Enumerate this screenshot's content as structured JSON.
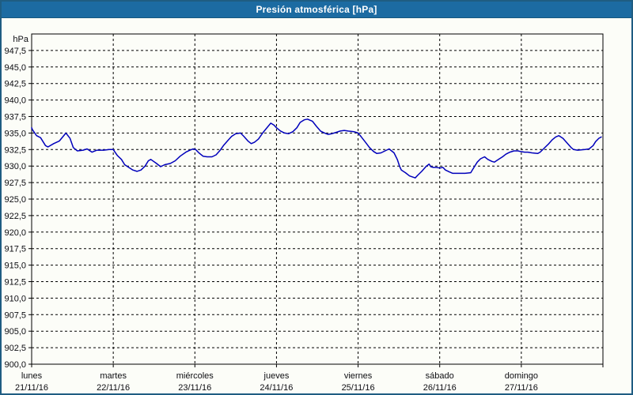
{
  "window": {
    "title": "Presión atmosférica [hPa]",
    "titlebar_bg": "#1c6ba2",
    "border_color": "#1f5d82",
    "background": "#fcfdf8"
  },
  "chart_data": {
    "type": "line",
    "title": "Presión atmosférica [hPa]",
    "unit_label": "hPa",
    "ylabel": "hPa",
    "xlabel": "",
    "ylim": [
      900,
      950
    ],
    "ytick_step": 2.5,
    "grid": "dashed",
    "legend": "none",
    "line_color": "#0000bb",
    "grid_color": "#000000",
    "ytick_labels": [
      "947,5",
      "945,0",
      "942,5",
      "940,0",
      "937,5",
      "935,0",
      "932,5",
      "930,0",
      "927,5",
      "925,0",
      "922,5",
      "920,0",
      "917,5",
      "915,0",
      "912,5",
      "910,0",
      "907,5",
      "905,0",
      "902,5",
      "900,0"
    ],
    "x_days_total": 7,
    "x_categories": [
      {
        "day": "lunes",
        "date": "21/11/16"
      },
      {
        "day": "martes",
        "date": "22/11/16"
      },
      {
        "day": "miércoles",
        "date": "23/11/16"
      },
      {
        "day": "jueves",
        "date": "24/11/16"
      },
      {
        "day": "viernes",
        "date": "25/11/16"
      },
      {
        "day": "sábado",
        "date": "26/11/16"
      },
      {
        "day": "domingo",
        "date": "27/11/16"
      }
    ],
    "series": [
      {
        "name": "Presión atmosférica",
        "points": [
          [
            0.0,
            935.8
          ],
          [
            0.01,
            935.5
          ],
          [
            0.06,
            934.6
          ],
          [
            0.11,
            934.3
          ],
          [
            0.17,
            933.1
          ],
          [
            0.2,
            932.9
          ],
          [
            0.27,
            933.4
          ],
          [
            0.34,
            933.8
          ],
          [
            0.42,
            935.0
          ],
          [
            0.47,
            934.2
          ],
          [
            0.51,
            932.8
          ],
          [
            0.56,
            932.3
          ],
          [
            0.63,
            932.4
          ],
          [
            0.68,
            932.6
          ],
          [
            0.74,
            932.1
          ],
          [
            0.8,
            932.4
          ],
          [
            0.88,
            932.4
          ],
          [
            0.95,
            932.5
          ],
          [
            1.0,
            932.5
          ],
          [
            1.05,
            931.6
          ],
          [
            1.1,
            931.0
          ],
          [
            1.14,
            930.2
          ],
          [
            1.19,
            929.8
          ],
          [
            1.24,
            929.4
          ],
          [
            1.29,
            929.2
          ],
          [
            1.34,
            929.4
          ],
          [
            1.39,
            930.0
          ],
          [
            1.43,
            930.8
          ],
          [
            1.46,
            931.0
          ],
          [
            1.53,
            930.4
          ],
          [
            1.58,
            929.9
          ],
          [
            1.63,
            930.2
          ],
          [
            1.7,
            930.4
          ],
          [
            1.76,
            930.8
          ],
          [
            1.82,
            931.5
          ],
          [
            1.89,
            932.1
          ],
          [
            1.94,
            932.4
          ],
          [
            1.98,
            932.6
          ],
          [
            2.01,
            932.5
          ],
          [
            2.05,
            932.0
          ],
          [
            2.1,
            931.5
          ],
          [
            2.15,
            931.4
          ],
          [
            2.21,
            931.4
          ],
          [
            2.26,
            931.7
          ],
          [
            2.31,
            932.4
          ],
          [
            2.35,
            933.1
          ],
          [
            2.4,
            933.8
          ],
          [
            2.45,
            934.5
          ],
          [
            2.5,
            934.9
          ],
          [
            2.56,
            935.0
          ],
          [
            2.6,
            934.5
          ],
          [
            2.65,
            933.8
          ],
          [
            2.69,
            933.4
          ],
          [
            2.73,
            933.6
          ],
          [
            2.78,
            934.1
          ],
          [
            2.83,
            935.0
          ],
          [
            2.87,
            935.6
          ],
          [
            2.93,
            936.5
          ],
          [
            2.97,
            936.2
          ],
          [
            3.0,
            935.8
          ],
          [
            3.05,
            935.3
          ],
          [
            3.1,
            935.0
          ],
          [
            3.15,
            934.9
          ],
          [
            3.2,
            935.2
          ],
          [
            3.25,
            935.8
          ],
          [
            3.29,
            936.6
          ],
          [
            3.34,
            937.0
          ],
          [
            3.38,
            937.1
          ],
          [
            3.44,
            936.8
          ],
          [
            3.49,
            936.0
          ],
          [
            3.54,
            935.3
          ],
          [
            3.59,
            935.0
          ],
          [
            3.63,
            934.8
          ],
          [
            3.68,
            934.9
          ],
          [
            3.73,
            935.1
          ],
          [
            3.78,
            935.3
          ],
          [
            3.83,
            935.4
          ],
          [
            3.88,
            935.3
          ],
          [
            3.95,
            935.2
          ],
          [
            4.0,
            935.0
          ],
          [
            4.04,
            934.4
          ],
          [
            4.09,
            933.6
          ],
          [
            4.14,
            932.8
          ],
          [
            4.19,
            932.2
          ],
          [
            4.23,
            931.9
          ],
          [
            4.28,
            932.0
          ],
          [
            4.33,
            932.3
          ],
          [
            4.38,
            932.6
          ],
          [
            4.41,
            932.3
          ],
          [
            4.44,
            932.0
          ],
          [
            4.48,
            931.0
          ],
          [
            4.51,
            929.9
          ],
          [
            4.53,
            929.4
          ],
          [
            4.58,
            929.0
          ],
          [
            4.63,
            928.5
          ],
          [
            4.7,
            928.2
          ],
          [
            4.73,
            928.6
          ],
          [
            4.78,
            929.2
          ],
          [
            4.83,
            929.9
          ],
          [
            4.87,
            930.3
          ],
          [
            4.89,
            929.9
          ],
          [
            4.92,
            929.8
          ],
          [
            4.96,
            929.8
          ],
          [
            5.0,
            929.7
          ],
          [
            5.04,
            929.8
          ],
          [
            5.07,
            929.4
          ],
          [
            5.12,
            929.1
          ],
          [
            5.16,
            928.9
          ],
          [
            5.23,
            928.9
          ],
          [
            5.31,
            928.9
          ],
          [
            5.38,
            929.0
          ],
          [
            5.41,
            929.6
          ],
          [
            5.46,
            930.6
          ],
          [
            5.5,
            931.1
          ],
          [
            5.55,
            931.4
          ],
          [
            5.59,
            931.0
          ],
          [
            5.64,
            930.7
          ],
          [
            5.67,
            930.6
          ],
          [
            5.72,
            931.0
          ],
          [
            5.77,
            931.4
          ],
          [
            5.81,
            931.8
          ],
          [
            5.86,
            932.1
          ],
          [
            5.91,
            932.3
          ],
          [
            5.96,
            932.3
          ],
          [
            5.99,
            932.2
          ],
          [
            6.04,
            932.1
          ],
          [
            6.08,
            932.1
          ],
          [
            6.13,
            932.0
          ],
          [
            6.2,
            931.9
          ],
          [
            6.23,
            932.1
          ],
          [
            6.28,
            932.7
          ],
          [
            6.33,
            933.3
          ],
          [
            6.38,
            934.0
          ],
          [
            6.42,
            934.4
          ],
          [
            6.46,
            934.6
          ],
          [
            6.51,
            934.2
          ],
          [
            6.56,
            933.5
          ],
          [
            6.61,
            932.8
          ],
          [
            6.64,
            932.5
          ],
          [
            6.69,
            932.4
          ],
          [
            6.78,
            932.5
          ],
          [
            6.83,
            932.6
          ],
          [
            6.88,
            933.1
          ],
          [
            6.91,
            933.7
          ],
          [
            6.95,
            934.2
          ],
          [
            6.98,
            934.4
          ]
        ]
      }
    ]
  }
}
